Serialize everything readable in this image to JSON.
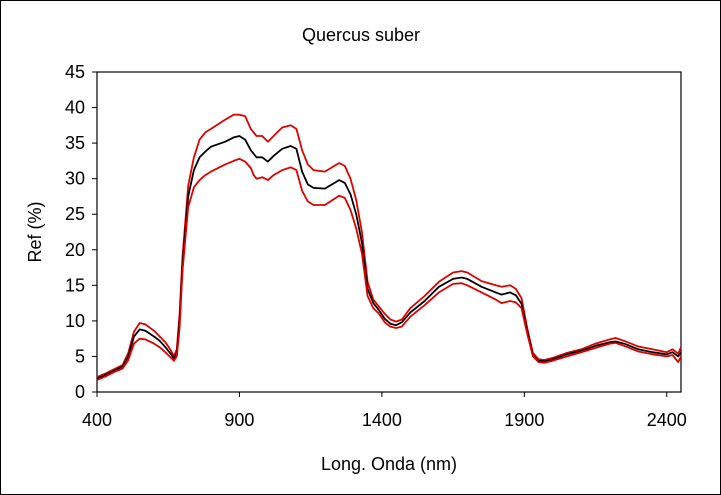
{
  "chart_data": {
    "type": "line",
    "title": "Quercus suber",
    "xlabel": "Long. Onda (nm)",
    "ylabel": "Ref (%)",
    "xlim": [
      400,
      2450
    ],
    "ylim": [
      0,
      45
    ],
    "xticks": [
      400,
      900,
      1400,
      1900,
      2400
    ],
    "yticks": [
      0,
      5,
      10,
      15,
      20,
      25,
      30,
      35,
      40,
      45
    ],
    "grid": false,
    "legend": "none",
    "series": [
      {
        "color": "#e00000",
        "x": [
          400,
          430,
          460,
          490,
          510,
          530,
          550,
          570,
          600,
          620,
          640,
          660,
          670,
          680,
          690,
          700,
          720,
          740,
          760,
          780,
          800,
          850,
          880,
          900,
          920,
          940,
          950,
          960,
          980,
          1000,
          1020,
          1050,
          1080,
          1100,
          1120,
          1140,
          1160,
          1200,
          1250,
          1270,
          1290,
          1310,
          1330,
          1350,
          1370,
          1390,
          1410,
          1430,
          1450,
          1470,
          1500,
          1550,
          1600,
          1650,
          1680,
          1700,
          1750,
          1800,
          1820,
          1850,
          1870,
          1890,
          1910,
          1930,
          1950,
          1970,
          2000,
          2050,
          2100,
          2150,
          2200,
          2220,
          2250,
          2300,
          2350,
          2400,
          2420,
          2440,
          2450
        ],
        "values": [
          2.1,
          2.6,
          3.2,
          3.8,
          5.5,
          8.5,
          9.7,
          9.5,
          8.6,
          7.8,
          7.0,
          5.8,
          5.0,
          6.0,
          11.0,
          19.0,
          29.0,
          33.0,
          35.5,
          36.5,
          37.0,
          38.3,
          39.0,
          39.0,
          38.8,
          37.0,
          36.5,
          36.0,
          36.0,
          35.2,
          36.0,
          37.2,
          37.5,
          37.0,
          34.0,
          32.0,
          31.2,
          31.0,
          32.2,
          31.8,
          30.0,
          27.0,
          22.5,
          15.5,
          13.0,
          12.0,
          11.0,
          10.2,
          9.9,
          10.2,
          11.8,
          13.5,
          15.5,
          16.8,
          17.0,
          16.8,
          15.6,
          15.0,
          14.8,
          15.0,
          14.5,
          13.2,
          9.0,
          5.5,
          4.6,
          4.5,
          4.8,
          5.5,
          6.0,
          6.8,
          7.4,
          7.6,
          7.2,
          6.4,
          6.0,
          5.6,
          6.0,
          5.4,
          6.3
        ]
      },
      {
        "color": "#000000",
        "x": [
          400,
          430,
          460,
          490,
          510,
          530,
          550,
          570,
          600,
          620,
          640,
          660,
          670,
          680,
          690,
          700,
          720,
          740,
          760,
          780,
          800,
          850,
          880,
          900,
          920,
          940,
          950,
          960,
          980,
          1000,
          1020,
          1050,
          1080,
          1100,
          1120,
          1140,
          1160,
          1200,
          1250,
          1270,
          1290,
          1310,
          1330,
          1350,
          1370,
          1390,
          1410,
          1430,
          1450,
          1470,
          1500,
          1550,
          1600,
          1650,
          1680,
          1700,
          1750,
          1800,
          1820,
          1850,
          1870,
          1890,
          1910,
          1930,
          1950,
          1970,
          2000,
          2050,
          2100,
          2150,
          2200,
          2220,
          2250,
          2300,
          2350,
          2400,
          2420,
          2440,
          2450
        ],
        "values": [
          1.9,
          2.4,
          3.0,
          3.6,
          5.0,
          7.8,
          8.8,
          8.6,
          7.8,
          7.2,
          6.3,
          5.3,
          4.7,
          5.5,
          10.0,
          18.0,
          27.5,
          31.2,
          33.0,
          33.8,
          34.5,
          35.2,
          35.8,
          36.0,
          35.5,
          34.0,
          33.5,
          33.0,
          33.0,
          32.4,
          33.2,
          34.2,
          34.6,
          34.2,
          31.0,
          29.2,
          28.7,
          28.6,
          29.8,
          29.4,
          27.8,
          25.0,
          21.0,
          14.5,
          12.5,
          11.5,
          10.3,
          9.6,
          9.4,
          9.8,
          11.2,
          12.8,
          14.8,
          15.9,
          16.1,
          15.9,
          14.8,
          14.0,
          13.7,
          14.0,
          13.6,
          12.4,
          8.6,
          5.2,
          4.4,
          4.3,
          4.6,
          5.3,
          5.8,
          6.5,
          7.0,
          7.1,
          6.8,
          6.0,
          5.6,
          5.3,
          5.6,
          5.0,
          5.6
        ]
      },
      {
        "color": "#e00000",
        "x": [
          400,
          430,
          460,
          490,
          510,
          530,
          550,
          570,
          600,
          620,
          640,
          660,
          670,
          680,
          690,
          700,
          720,
          740,
          760,
          780,
          800,
          850,
          880,
          900,
          920,
          940,
          950,
          960,
          980,
          1000,
          1020,
          1050,
          1080,
          1100,
          1120,
          1140,
          1160,
          1200,
          1250,
          1270,
          1290,
          1310,
          1330,
          1350,
          1370,
          1390,
          1410,
          1430,
          1450,
          1470,
          1500,
          1550,
          1600,
          1650,
          1680,
          1700,
          1750,
          1800,
          1820,
          1850,
          1870,
          1890,
          1910,
          1930,
          1950,
          1970,
          2000,
          2050,
          2100,
          2150,
          2200,
          2220,
          2250,
          2300,
          2350,
          2400,
          2420,
          2440,
          2450
        ],
        "values": [
          1.7,
          2.2,
          2.8,
          3.3,
          4.5,
          6.8,
          7.5,
          7.4,
          6.8,
          6.3,
          5.6,
          4.8,
          4.4,
          5.0,
          9.0,
          17.0,
          26.0,
          28.8,
          29.8,
          30.5,
          31.0,
          32.0,
          32.5,
          32.8,
          32.4,
          31.5,
          30.5,
          30.0,
          30.2,
          29.8,
          30.5,
          31.2,
          31.6,
          31.2,
          28.3,
          26.8,
          26.3,
          26.3,
          27.6,
          27.3,
          25.6,
          23.0,
          19.5,
          13.5,
          11.8,
          11.0,
          9.8,
          9.2,
          9.0,
          9.2,
          10.6,
          12.2,
          14.0,
          15.2,
          15.3,
          15.0,
          14.0,
          13.0,
          12.5,
          12.8,
          12.6,
          11.8,
          8.2,
          5.0,
          4.2,
          4.1,
          4.4,
          5.0,
          5.6,
          6.2,
          6.8,
          6.9,
          6.5,
          5.7,
          5.3,
          5.0,
          5.2,
          4.2,
          5.0
        ]
      }
    ]
  }
}
